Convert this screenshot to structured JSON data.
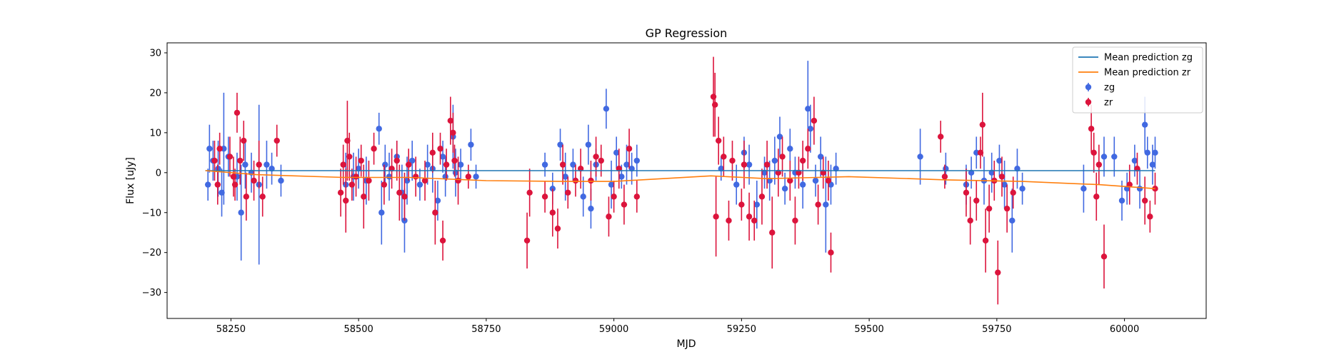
{
  "chart_data": {
    "type": "scatter",
    "title": "GP Regression",
    "xlabel": "MJD",
    "ylabel": "Flux [uJy]",
    "xlim": [
      58125,
      60160
    ],
    "ylim": [
      -36.5,
      32.5
    ],
    "xticks": [
      58250,
      58500,
      58750,
      59000,
      59250,
      59500,
      59750,
      60000
    ],
    "yticks": [
      -30,
      -20,
      -10,
      0,
      10,
      20,
      30
    ],
    "xtick_labels": [
      "58250",
      "58500",
      "58750",
      "59000",
      "59250",
      "59500",
      "59750",
      "60000"
    ],
    "ytick_labels": [
      "−30",
      "−20",
      "−10",
      "0",
      "10",
      "20",
      "30"
    ],
    "grid": false,
    "legend_position": "top-right",
    "series": [
      {
        "name": "Mean prediction zg",
        "kind": "line",
        "color": "#1f77b4",
        "x": [
          58200,
          60060
        ],
        "y": [
          0.5,
          0.5
        ]
      },
      {
        "name": "Mean prediction zr",
        "kind": "line",
        "color": "#ff7f0e",
        "x": [
          58200,
          58300,
          58470,
          58600,
          58750,
          58900,
          59000,
          59190,
          59300,
          59460,
          59650,
          59800,
          59950,
          60060
        ],
        "y": [
          0.5,
          -0.5,
          -1.2,
          -1.2,
          -2.0,
          -2.2,
          -2.2,
          -0.8,
          -1.5,
          -1.0,
          -1.8,
          -2.2,
          -3.0,
          -4.0
        ]
      },
      {
        "name": "zg",
        "kind": "errorbar",
        "color": "#4169e1",
        "points": [
          [
            58205,
            -3,
            4
          ],
          [
            58208,
            6,
            6
          ],
          [
            58215,
            3,
            5
          ],
          [
            58225,
            1,
            7
          ],
          [
            58232,
            -5,
            6
          ],
          [
            58236,
            6,
            14
          ],
          [
            58245,
            4,
            5
          ],
          [
            58262,
            -1,
            6
          ],
          [
            58270,
            -10,
            12
          ],
          [
            58278,
            2,
            6
          ],
          [
            58290,
            0,
            5
          ],
          [
            58305,
            -3,
            20
          ],
          [
            58320,
            2,
            6
          ],
          [
            58330,
            1,
            4
          ],
          [
            58348,
            -2,
            4
          ],
          [
            58475,
            -3,
            8
          ],
          [
            58490,
            -1,
            6
          ],
          [
            58500,
            1,
            5
          ],
          [
            58515,
            -2,
            6
          ],
          [
            58540,
            11,
            4
          ],
          [
            58545,
            -10,
            8
          ],
          [
            58552,
            2,
            5
          ],
          [
            58560,
            -1,
            6
          ],
          [
            58575,
            4,
            4
          ],
          [
            58585,
            -5,
            7
          ],
          [
            58590,
            -12,
            8
          ],
          [
            58595,
            -2,
            6
          ],
          [
            58605,
            3,
            5
          ],
          [
            58620,
            -3,
            4
          ],
          [
            58635,
            2,
            5
          ],
          [
            58645,
            1,
            6
          ],
          [
            58655,
            -7,
            5
          ],
          [
            58665,
            4,
            4
          ],
          [
            58670,
            -1,
            5
          ],
          [
            58685,
            9,
            8
          ],
          [
            58690,
            0,
            6
          ],
          [
            58700,
            2,
            4
          ],
          [
            58720,
            7,
            4
          ],
          [
            58730,
            -1,
            3
          ],
          [
            58865,
            2,
            3
          ],
          [
            58880,
            -4,
            4
          ],
          [
            58895,
            7,
            4
          ],
          [
            58905,
            -1,
            6
          ],
          [
            58920,
            2,
            4
          ],
          [
            58940,
            -6,
            5
          ],
          [
            58950,
            7,
            5
          ],
          [
            58955,
            -9,
            5
          ],
          [
            58965,
            2,
            4
          ],
          [
            58985,
            16,
            5
          ],
          [
            58995,
            -3,
            6
          ],
          [
            59005,
            5,
            4
          ],
          [
            59015,
            -1,
            3
          ],
          [
            59025,
            2,
            5
          ],
          [
            59035,
            1,
            4
          ],
          [
            59045,
            3,
            4
          ],
          [
            59210,
            1,
            3
          ],
          [
            59240,
            -3,
            5
          ],
          [
            59255,
            5,
            4
          ],
          [
            59265,
            2,
            5
          ],
          [
            59280,
            -8,
            6
          ],
          [
            59295,
            0,
            4
          ],
          [
            59305,
            -2,
            5
          ],
          [
            59315,
            3,
            6
          ],
          [
            59325,
            9,
            5
          ],
          [
            59335,
            -4,
            4
          ],
          [
            59345,
            6,
            5
          ],
          [
            59355,
            0,
            4
          ],
          [
            59370,
            -3,
            6
          ],
          [
            59380,
            16,
            12
          ],
          [
            59385,
            11,
            6
          ],
          [
            59395,
            -2,
            4
          ],
          [
            59405,
            4,
            5
          ],
          [
            59415,
            -8,
            12
          ],
          [
            59425,
            -3,
            5
          ],
          [
            59435,
            1,
            4
          ],
          [
            59600,
            4,
            7
          ],
          [
            59650,
            1,
            4
          ],
          [
            59690,
            -3,
            5
          ],
          [
            59700,
            0,
            4
          ],
          [
            59710,
            5,
            4
          ],
          [
            59725,
            -2,
            6
          ],
          [
            59740,
            0,
            5
          ],
          [
            59755,
            3,
            4
          ],
          [
            59765,
            -3,
            6
          ],
          [
            59780,
            -12,
            8
          ],
          [
            59790,
            1,
            5
          ],
          [
            59800,
            -4,
            4
          ],
          [
            59920,
            -4,
            6
          ],
          [
            59960,
            4,
            5
          ],
          [
            59980,
            4,
            5
          ],
          [
            59995,
            -7,
            5
          ],
          [
            60005,
            -4,
            4
          ],
          [
            60020,
            3,
            4
          ],
          [
            60030,
            -4,
            5
          ],
          [
            60040,
            12,
            7
          ],
          [
            60045,
            5,
            4
          ],
          [
            60055,
            2,
            5
          ],
          [
            60060,
            5,
            4
          ]
        ]
      },
      {
        "name": "zr",
        "kind": "errorbar",
        "color": "#dc143c",
        "points": [
          [
            58218,
            3,
            5
          ],
          [
            58224,
            -3,
            5
          ],
          [
            58228,
            6,
            4
          ],
          [
            58248,
            4,
            5
          ],
          [
            58255,
            -1,
            5
          ],
          [
            58258,
            -3,
            4
          ],
          [
            58262,
            15,
            5
          ],
          [
            58268,
            3,
            6
          ],
          [
            58275,
            8,
            5
          ],
          [
            58280,
            -6,
            6
          ],
          [
            58295,
            -2,
            5
          ],
          [
            58305,
            2,
            6
          ],
          [
            58312,
            -6,
            5
          ],
          [
            58340,
            8,
            4
          ],
          [
            58465,
            -5,
            6
          ],
          [
            58470,
            2,
            5
          ],
          [
            58475,
            -7,
            8
          ],
          [
            58478,
            8,
            10
          ],
          [
            58482,
            4,
            6
          ],
          [
            58487,
            -3,
            4
          ],
          [
            58495,
            -1,
            5
          ],
          [
            58505,
            3,
            4
          ],
          [
            58510,
            -6,
            8
          ],
          [
            58520,
            -2,
            5
          ],
          [
            58530,
            6,
            4
          ],
          [
            58550,
            -3,
            5
          ],
          [
            58565,
            1,
            5
          ],
          [
            58575,
            3,
            5
          ],
          [
            58580,
            -5,
            7
          ],
          [
            58590,
            -6,
            6
          ],
          [
            58598,
            2,
            4
          ],
          [
            58612,
            -1,
            5
          ],
          [
            58630,
            -2,
            5
          ],
          [
            58645,
            5,
            5
          ],
          [
            58650,
            -10,
            8
          ],
          [
            58660,
            6,
            4
          ],
          [
            58665,
            -17,
            5
          ],
          [
            58672,
            2,
            4
          ],
          [
            58680,
            13,
            6
          ],
          [
            58685,
            10,
            5
          ],
          [
            58688,
            3,
            4
          ],
          [
            58695,
            -2,
            6
          ],
          [
            58715,
            -1,
            3
          ],
          [
            58830,
            -17,
            7
          ],
          [
            58835,
            -5,
            6
          ],
          [
            58865,
            -6,
            4
          ],
          [
            58880,
            -10,
            6
          ],
          [
            58890,
            -14,
            5
          ],
          [
            58900,
            2,
            5
          ],
          [
            58910,
            -5,
            4
          ],
          [
            58925,
            -2,
            4
          ],
          [
            58935,
            1,
            5
          ],
          [
            58955,
            -2,
            5
          ],
          [
            58965,
            4,
            5
          ],
          [
            58975,
            3,
            4
          ],
          [
            58990,
            -11,
            5
          ],
          [
            59000,
            -6,
            4
          ],
          [
            59010,
            1,
            5
          ],
          [
            59020,
            -8,
            5
          ],
          [
            59030,
            6,
            5
          ],
          [
            59045,
            -6,
            4
          ],
          [
            59195,
            19,
            10
          ],
          [
            59198,
            17,
            8
          ],
          [
            59200,
            -11,
            10
          ],
          [
            59205,
            8,
            6
          ],
          [
            59215,
            4,
            5
          ],
          [
            59225,
            -12,
            5
          ],
          [
            59232,
            3,
            5
          ],
          [
            59250,
            -8,
            4
          ],
          [
            59255,
            2,
            6
          ],
          [
            59265,
            -11,
            6
          ],
          [
            59275,
            -12,
            5
          ],
          [
            59290,
            -6,
            7
          ],
          [
            59300,
            2,
            6
          ],
          [
            59310,
            -15,
            9
          ],
          [
            59322,
            0,
            6
          ],
          [
            59330,
            4,
            5
          ],
          [
            59345,
            -2,
            5
          ],
          [
            59355,
            -12,
            6
          ],
          [
            59362,
            0,
            4
          ],
          [
            59370,
            3,
            5
          ],
          [
            59380,
            6,
            5
          ],
          [
            59392,
            13,
            6
          ],
          [
            59400,
            -8,
            5
          ],
          [
            59410,
            0,
            4
          ],
          [
            59420,
            -2,
            5
          ],
          [
            59425,
            -20,
            5
          ],
          [
            59640,
            9,
            4
          ],
          [
            59648,
            -1,
            3
          ],
          [
            59690,
            -5,
            6
          ],
          [
            59698,
            -12,
            6
          ],
          [
            59710,
            -7,
            5
          ],
          [
            59718,
            5,
            4
          ],
          [
            59722,
            12,
            8
          ],
          [
            59728,
            -17,
            8
          ],
          [
            59735,
            -9,
            6
          ],
          [
            59745,
            -2,
            5
          ],
          [
            59752,
            -25,
            8
          ],
          [
            59760,
            -1,
            5
          ],
          [
            59770,
            -9,
            6
          ],
          [
            59782,
            -5,
            4
          ],
          [
            59935,
            11,
            6
          ],
          [
            59940,
            5,
            5
          ],
          [
            59945,
            -6,
            6
          ],
          [
            59950,
            2,
            5
          ],
          [
            59960,
            -21,
            8
          ],
          [
            60010,
            -3,
            5
          ],
          [
            60025,
            1,
            4
          ],
          [
            60040,
            -7,
            6
          ],
          [
            60050,
            -11,
            4
          ],
          [
            60060,
            -4,
            4
          ]
        ]
      }
    ]
  }
}
